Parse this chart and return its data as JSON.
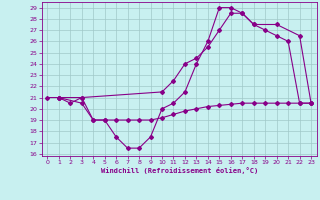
{
  "title": "",
  "xlabel": "Windchill (Refroidissement éolien,°C)",
  "bg_color": "#c8f0f0",
  "line_color": "#880088",
  "grid_color": "#a0c8c8",
  "xlim": [
    -0.5,
    23.5
  ],
  "ylim": [
    15.8,
    29.5
  ],
  "yticks": [
    16,
    17,
    18,
    19,
    20,
    21,
    22,
    23,
    24,
    25,
    26,
    27,
    28,
    29
  ],
  "xticks": [
    0,
    1,
    2,
    3,
    4,
    5,
    6,
    7,
    8,
    9,
    10,
    11,
    12,
    13,
    14,
    15,
    16,
    17,
    18,
    19,
    20,
    21,
    22,
    23
  ],
  "line1_x": [
    0,
    1,
    2,
    3,
    4,
    5,
    6,
    7,
    8,
    9,
    10,
    11,
    12,
    13,
    14,
    15,
    16,
    17,
    18,
    19,
    20,
    21,
    22,
    23
  ],
  "line1_y": [
    21.0,
    21.0,
    20.5,
    21.0,
    19.0,
    19.0,
    17.5,
    16.5,
    16.5,
    17.5,
    20.0,
    20.5,
    21.5,
    24.0,
    26.0,
    29.0,
    29.0,
    28.5,
    27.5,
    27.0,
    26.5,
    26.0,
    20.5,
    20.5
  ],
  "line2_x": [
    1,
    3,
    10,
    11,
    12,
    13,
    14,
    15,
    16,
    17,
    18,
    20,
    22,
    23
  ],
  "line2_y": [
    21.0,
    21.0,
    21.5,
    22.5,
    24.0,
    24.5,
    25.5,
    27.0,
    28.5,
    28.5,
    27.5,
    27.5,
    26.5,
    20.5
  ],
  "line3_x": [
    1,
    3,
    4,
    5,
    6,
    7,
    8,
    9,
    10,
    11,
    12,
    13,
    14,
    15,
    16,
    17,
    18,
    19,
    20,
    21,
    22,
    23
  ],
  "line3_y": [
    21.0,
    20.5,
    19.0,
    19.0,
    19.0,
    19.0,
    19.0,
    19.0,
    19.2,
    19.5,
    19.8,
    20.0,
    20.2,
    20.3,
    20.4,
    20.5,
    20.5,
    20.5,
    20.5,
    20.5,
    20.5,
    20.5
  ],
  "marker": "D",
  "marker_size": 2,
  "linewidth": 0.8
}
